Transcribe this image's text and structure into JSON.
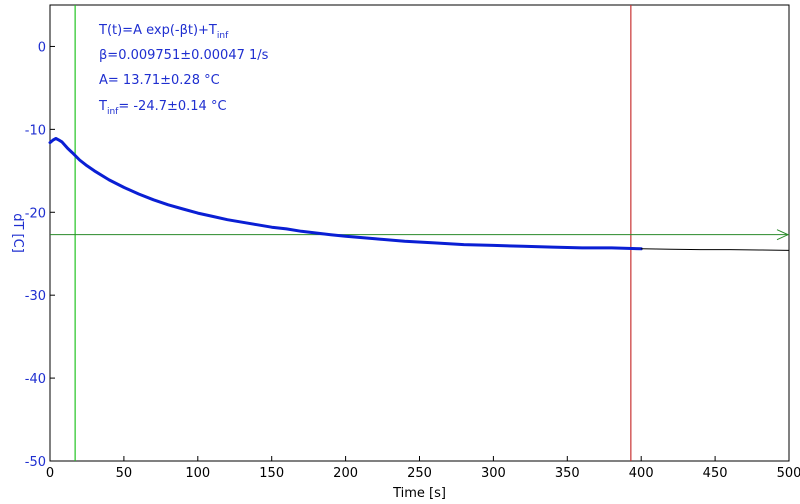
{
  "chart_data": {
    "type": "line",
    "xlabel": "Time [s]",
    "ylabel": "dT [C]",
    "xlim": [
      0,
      500
    ],
    "ylim": [
      -50,
      5
    ],
    "x_ticks": [
      0,
      50,
      100,
      150,
      200,
      250,
      300,
      350,
      400,
      450,
      500
    ],
    "y_ticks": [
      0,
      -10,
      -20,
      -30,
      -40,
      -50
    ],
    "grid": false,
    "legend": "none",
    "annotation": {
      "formula_main": "T(t)=A exp(-βt)+T",
      "formula_sub": "inf",
      "beta": "β=0.009751±0.00047 1/s",
      "A": "A= 13.71±0.28 °C",
      "tinf_main": "T",
      "tinf_sub": "inf",
      "tinf_value": "= -24.7±0.14 °C"
    },
    "fit_params": {
      "A": 13.71,
      "beta": 0.009751,
      "T_inf": -24.7
    },
    "markers": {
      "start_x": 17,
      "end_x": 393,
      "asymptote_y": -22.7
    },
    "series": [
      {
        "role": "measured",
        "x": [
          0,
          2,
          4,
          6,
          8,
          10,
          12,
          15,
          20,
          25,
          30,
          40,
          50,
          60,
          70,
          80,
          90,
          100,
          110,
          120,
          130,
          140,
          150,
          160,
          170,
          180,
          190,
          200,
          220,
          240,
          260,
          280,
          300,
          320,
          340,
          360,
          380,
          400
        ],
        "y": [
          -11.6,
          -11.3,
          -11.1,
          -11.3,
          -11.5,
          -11.9,
          -12.3,
          -12.8,
          -13.7,
          -14.4,
          -15.0,
          -16.1,
          -17.0,
          -17.8,
          -18.5,
          -19.1,
          -19.6,
          -20.1,
          -20.5,
          -20.9,
          -21.2,
          -21.5,
          -21.8,
          -22.0,
          -22.3,
          -22.5,
          -22.7,
          -22.9,
          -23.2,
          -23.5,
          -23.7,
          -23.9,
          -24.0,
          -24.1,
          -24.2,
          -24.3,
          -24.3,
          -24.4
        ],
        "color": "#0a1fd4"
      },
      {
        "role": "fit",
        "x": [
          400,
          420,
          440,
          460,
          480,
          500
        ],
        "y": [
          -24.4,
          -24.45,
          -24.5,
          -24.5,
          -24.55,
          -24.6
        ],
        "color": "#000000"
      }
    ],
    "colors": {
      "axis_label": "#1f2fd0",
      "annotation": "#1f2fd0",
      "start_marker": "#22c322",
      "end_marker": "#c83232",
      "asymptote": "#2a8a2a",
      "axes": "#000000"
    }
  }
}
